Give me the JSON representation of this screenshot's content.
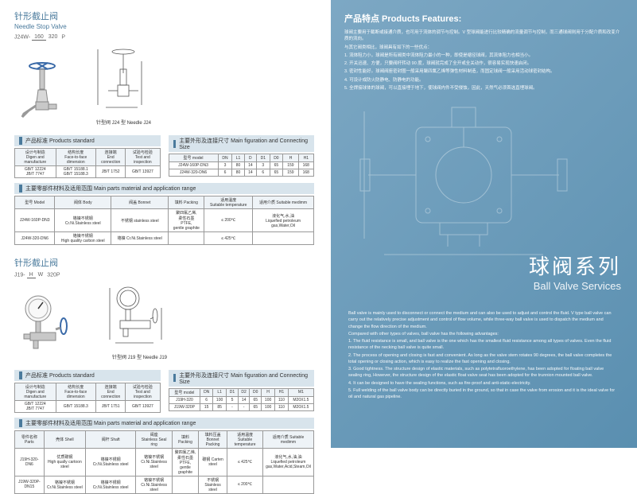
{
  "left": {
    "s1": {
      "title_cn": "针形截止阀",
      "title_en": "Needle   Stop Valve",
      "model_prefix": "J24W-",
      "model_top": "160",
      "model_bot": "320",
      "model_suffix": "P",
      "cap1": "针型阀 J24 型 Needle J24",
      "hdr_std": "产品标准 Products standard",
      "hdr_size": "主要外形及连接尺寸 Main figuration and Connecting Size",
      "hdr_mat": "主要零部件材料及适用范围 Main parts material and application range",
      "std_th": [
        "设计与制造\nDigen and manufacture",
        "结构长度\nFace-to-face dimension",
        "连接端\nEnd connection",
        "试验与检验\nTest and inspection"
      ],
      "std_td": [
        "GB/T 12224\nJB/T 7747",
        "GB/T 15188.1\nGB/T 15188.3",
        "JB/T 1752",
        "GB/T 13927"
      ],
      "size_th": [
        "型号 model",
        "DN",
        "L1",
        "D",
        "D1",
        "D0",
        "H",
        "H1"
      ],
      "size_rows": [
        [
          "J24W-160P-DN3",
          "3",
          "80",
          "14",
          "3",
          "65",
          "159",
          "168"
        ],
        [
          "J24W-320-DN6",
          "6",
          "80",
          "14",
          "6",
          "65",
          "159",
          "168"
        ]
      ],
      "mat_th": [
        "型号 Model",
        "阀体 Body",
        "阀盖 Bonnet",
        "填料 Packing",
        "适用温度\nSuitable temperature",
        "适用介质 Suitable medimm"
      ],
      "mat_rows": [
        [
          "J24W-160P-DN3",
          "铬镍不锈钢\nCr.Ni.Stainless steel",
          "不锈钢 stainless steel",
          "聚四氟乙烯,\n柔性石墨\nPTFE,\ngentle graphite",
          "≤ 200℃",
          "液化气,水,油\nLiquefied petroleum\ngas,Water,Oil"
        ],
        [
          "J24W-320-DN6",
          "铬镍不锈钢\nHigh quality carbon steel",
          "铬镍 Cr.Ni.Stainless steel",
          "",
          "≤ 425℃",
          ""
        ]
      ]
    },
    "s2": {
      "title_cn": "针形截止阀",
      "model_prefix": "J19-",
      "model_top": "H",
      "model_bot": "W",
      "model_suffix": "320P",
      "cap1": "针型阀 J19 型 Needle J19",
      "hdr_std": "产品标准 Products standard",
      "hdr_size": "主要外形及连接尺寸 Main figuration and Connecting Size",
      "hdr_mat": "主要零部件材料及适用范围 Main parts material and application range",
      "std_th": [
        "设计与制造\nDigen and manufacture",
        "结构长度\nFace-to-face dimension",
        "连接端\nEnd connection",
        "试验与检验\nTest and inspection"
      ],
      "std_td": [
        "GB/T 12224\nJB/T 7747",
        "GB/T 15188.3",
        "JB/T 1751",
        "GB/T 13927"
      ],
      "size_th": [
        "型号 model",
        "DN",
        "L1",
        "D1",
        "D2",
        "D0",
        "H",
        "H1",
        "M1"
      ],
      "size_rows": [
        [
          "J19H-320",
          "6",
          "100",
          "5",
          "14",
          "65",
          "100",
          "110",
          "M20X1.5"
        ],
        [
          "J19W-320P",
          "15",
          "85",
          "-",
          "-",
          "65",
          "100",
          "110",
          "M20X1.5"
        ]
      ],
      "mat_th": [
        "零件名称 Parts",
        "壳体 Shell",
        "阀杆 Shaft",
        "阀座\nStainless Seal ring",
        "填料 Packing",
        "填料压盖\nBonnet Packing",
        "适用温度\nSuitable temperature",
        "适用介质 Suitable medimm"
      ],
      "mat_rows": [
        [
          "J19H-320-DN6",
          "优质碳钢\nHigh qually cartoon steel",
          "铬镍不锈钢 Cr.Ni.Stainless steel",
          "铬镍不锈钢\nCr.Ni.Stainless steel",
          "聚四氟乙烯,\n柔性石墨\nPTFE,\ngentle graphite",
          "碳钢 Carten\nsteel",
          "≤ 425℃",
          "液化气,水,油,油\nLiquefied petroleum\ngas,Water,Acid,Steam,Oil"
        ],
        [
          "J19W-320P-DN15",
          "铬镍不锈钢\nCr.Ni.Stainless steel",
          "铬镍不锈钢 Cr.Ni.Stainless steel",
          "铬镍不锈钢\nCr.Ni.Stainless steel",
          "",
          "不锈钢 Stainless\nsteel",
          "≤ 200℃",
          ""
        ]
      ]
    }
  },
  "right": {
    "feat_title": "产品特点 Products Features:",
    "feat_lines": [
      "球阀主要用于截断或接通介质，也可用于流体的调节与控制。V 型球阀能进行比较精确的流量调节与控制，而三通球阀则用于分配介质和改变介质的流向。",
      "与其它阀类相比，球阀具有如下的一些优点：",
      "1. 流体阻力小，球阀是所有阀类中流体阻力最小的一种，即使是缩径球阀，其流体阻力也相当小。",
      "2. 开关迅速、方便，只要阀杆转动 90 度，球阀就完成了全开或全关动作，很容易实现快速启闭。",
      "3. 密封性能好。球阀阀座密封圈一般采用聚四氟乙烯等弹性材料制造，而固定球阀一般采用活动球密封结构。",
      "4. 可设计成防火防静电、防静电的功能。",
      "5. 全焊接球体的球阀，可以直接埋于地下，使球阀内件不受侵蚀，因此，天然气必须首选直埋球阀。"
    ],
    "series_cn": "球阀系列",
    "series_en": "Ball Valve Services",
    "bottom_lines": [
      "Ball valve is mainly used to disconnect or connect the medium and can also be used to adjust and control the fluid. V type ball valve can carry out the relatively precise adjustment and control of flow volume, while three-way ball valve is used to dispatch the medium and change the flow direction of the medium.",
      "Compared with other types of valves, ball valve has the following advantages:",
      "1. The fluid resistance is small, and ball valve is the one which has the smallest fluid resistance among all types of valves. Even the fluid resistance of the necking ball valve is quite small.",
      "2. The process of opening and closing is fast and convenient. As long as the valve stem rotates 90 degrees, the ball valve completes the total opening or closing action, which is easy to realize the fast opening and closing.",
      "3. Good tightness. The structure design of elastic materials, such as polytetrafluoroethylene, has been adopted for floating ball valve sealing ring, However, the structure design of the elastic float valve seat has been adopted for the trunnion mounted ball valve.",
      "4. It can be designed to have the sealing functions, such as fire-proof and anti-static-electricity.",
      "5. Full welding of the ball valve body can be directly buried in the ground, so that in case the valve from erosion and it is the ideal valve for oil and natural gas pipeline."
    ]
  },
  "colors": {
    "accent": "#4a7a9c",
    "valve_blue": "#3a6aa8",
    "right_bg1": "#7da8c4",
    "right_bg2": "#5a8fb0",
    "table_header": "#eef3f7",
    "sec_bg": "#d8e4ec"
  }
}
